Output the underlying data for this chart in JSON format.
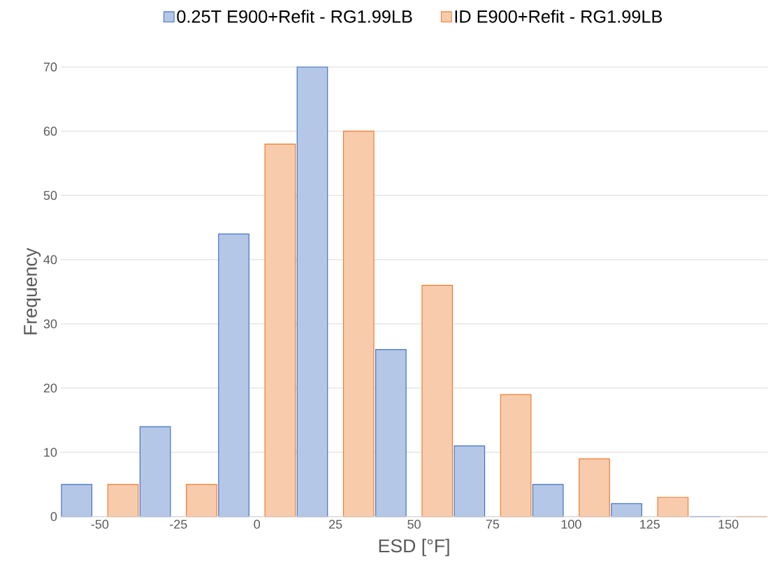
{
  "chart_data": {
    "type": "bar",
    "xlabel": "ESD [°F]",
    "ylabel": "Frequency",
    "categories": [
      "-50",
      "-25",
      "0",
      "25",
      "50",
      "75",
      "100",
      "125",
      "150"
    ],
    "series": [
      {
        "name": "0.25T E900+Refit - RG1.99LB",
        "color": "#4472c4",
        "values": [
          5,
          14,
          44,
          70,
          26,
          11,
          5,
          2,
          0
        ]
      },
      {
        "name": "ID E900+Refit - RG1.99LB",
        "color": "#ed7d31",
        "values": [
          5,
          5,
          58,
          60,
          36,
          19,
          9,
          3,
          0
        ]
      }
    ],
    "ylim": [
      0,
      70
    ],
    "yticks": [
      0,
      10,
      20,
      30,
      40,
      50,
      60,
      70
    ],
    "grid": "y",
    "legend": "top"
  }
}
